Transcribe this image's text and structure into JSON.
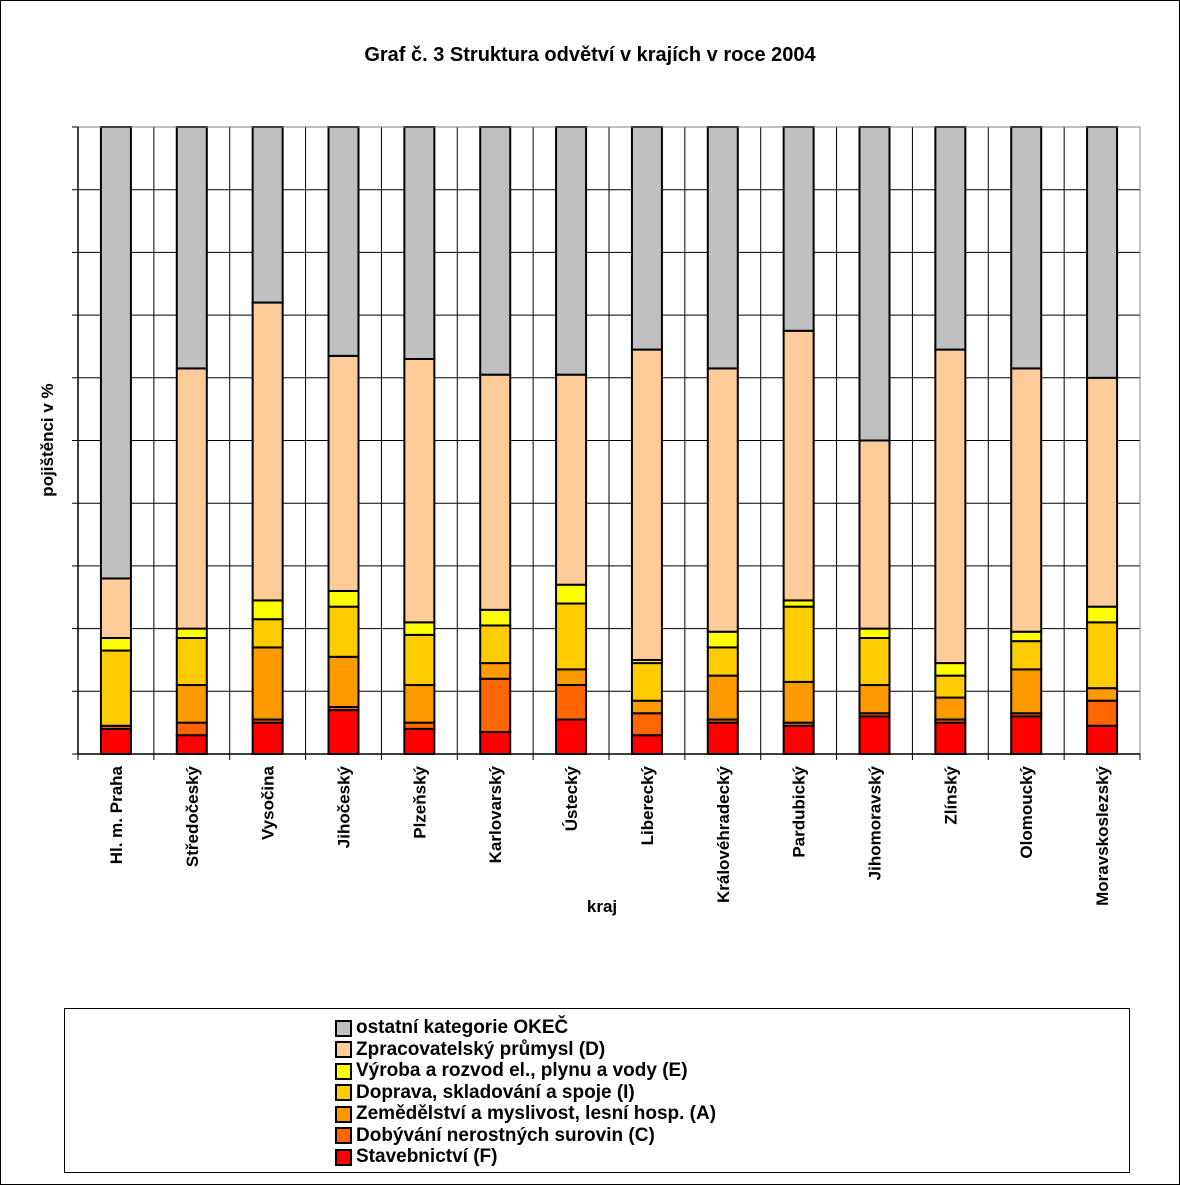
{
  "chart_data": {
    "type": "bar",
    "stacked": true,
    "normalized": true,
    "title": "Graf č. 3  Struktura odvětví v krajích v roce 2004",
    "xlabel": "kraj",
    "ylabel": "pojištěnci v %",
    "ylim": [
      0,
      100
    ],
    "grid": true,
    "legend_position": "bottom",
    "categories": [
      "Hl. m. Praha",
      "Středočeský",
      "Vysočina",
      "Jihočeský",
      "Plzeňský",
      "Karlovarský",
      "Ústecký",
      "Liberecký",
      "Královéhradecký",
      "Pardubický",
      "Jihomoravský",
      "Zlínský",
      "Olomoucký",
      "Moravskoslezský"
    ],
    "series": [
      {
        "name": "Stavebnictví (F)",
        "color": "#ff0000",
        "values": [
          4,
          3,
          5,
          7,
          4,
          3.5,
          5.5,
          3,
          5,
          4.5,
          6,
          5,
          6,
          4.5
        ]
      },
      {
        "name": "Dobývání nerostných surovin (C)",
        "color": "#ff6600",
        "values": [
          0.5,
          2,
          0.5,
          0.5,
          1,
          8.5,
          5.5,
          3.5,
          0.5,
          0.5,
          0.5,
          0.5,
          0.5,
          4
        ]
      },
      {
        "name": "Zemědělství a myslivost, lesní hosp. (A)",
        "color": "#ff9900",
        "values": [
          0,
          6,
          11.5,
          8,
          6,
          2.5,
          2.5,
          2,
          7,
          6.5,
          4.5,
          3.5,
          7,
          2
        ]
      },
      {
        "name": "Doprava, skladování a spoje (I)",
        "color": "#ffcc00",
        "values": [
          12,
          7.5,
          4.5,
          8,
          8,
          6,
          10.5,
          6,
          4.5,
          12,
          7.5,
          3.5,
          4.5,
          10.5
        ]
      },
      {
        "name": "Výroba a rozvod el., plynu a vody (E)",
        "color": "#ffff00",
        "values": [
          2,
          1.5,
          3,
          2.5,
          2,
          2.5,
          3,
          0.5,
          2.5,
          1,
          1.5,
          2,
          1.5,
          2.5
        ]
      },
      {
        "name": "Zpracovatelský průmysl (D)",
        "color": "#ffcc99",
        "values": [
          9.5,
          41.5,
          47.5,
          37.5,
          42,
          37.5,
          33.5,
          49.5,
          42,
          43,
          30,
          50,
          42,
          36.5
        ]
      },
      {
        "name": "ostatní kategorie OKEČ",
        "color": "#c0c0c0",
        "values": [
          72,
          38.5,
          28,
          36.5,
          37,
          39.5,
          39.5,
          35.5,
          38.5,
          32.5,
          50,
          35.5,
          38.5,
          40
        ]
      }
    ]
  },
  "legend_order": [
    6,
    5,
    4,
    3,
    2,
    1,
    0
  ]
}
